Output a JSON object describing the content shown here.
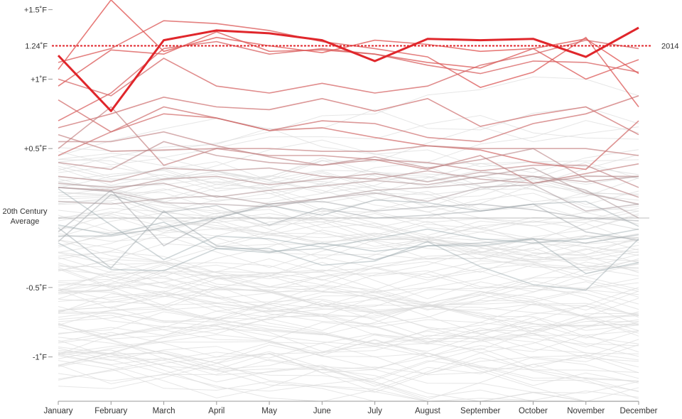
{
  "chart_data": {
    "type": "line",
    "categories": [
      "January",
      "February",
      "March",
      "April",
      "May",
      "June",
      "July",
      "August",
      "September",
      "October",
      "November",
      "December"
    ],
    "y_ticks": [
      {
        "label": "+1.5˚F",
        "value": 1.5
      },
      {
        "label": "+1˚F",
        "value": 1.0
      },
      {
        "label": "+0.5˚F",
        "value": 0.5
      },
      {
        "label": "-0.5˚F",
        "value": -0.5
      },
      {
        "label": "-1˚F",
        "value": -1.0
      }
    ],
    "baseline_label_line1": "20th Century",
    "baseline_label_line2": "Average",
    "ylim": [
      -1.3,
      1.55
    ],
    "reference": {
      "value": 1.24,
      "label": "1.24˚F",
      "color": "#e0262b"
    },
    "highlight": {
      "name": "2014",
      "color": "#e0262b",
      "values": [
        1.17,
        0.77,
        1.28,
        1.35,
        1.33,
        1.28,
        1.13,
        1.29,
        1.28,
        1.29,
        1.16,
        1.37
      ]
    },
    "series": [
      {
        "values": [
          1.07,
          1.57,
          1.2,
          1.3,
          1.24,
          1.19,
          1.28,
          1.25,
          1.2,
          1.22,
          1.29,
          1.04
        ],
        "warmth": 0.95
      },
      {
        "values": [
          1.12,
          1.22,
          1.42,
          1.4,
          1.35,
          1.27,
          1.22,
          1.16,
          0.94,
          1.05,
          1.3,
          0.8
        ],
        "warmth": 0.9
      },
      {
        "values": [
          0.95,
          1.21,
          1.18,
          1.34,
          1.2,
          1.21,
          1.18,
          1.12,
          1.08,
          1.22,
          1.0,
          1.14
        ],
        "warmth": 0.9
      },
      {
        "values": [
          0.7,
          0.9,
          1.22,
          1.27,
          1.18,
          1.22,
          1.18,
          1.1,
          1.04,
          1.13,
          1.12,
          1.05
        ],
        "warmth": 0.85
      },
      {
        "values": [
          1.0,
          0.88,
          1.15,
          0.95,
          0.9,
          0.97,
          0.9,
          0.95,
          1.1,
          1.18,
          1.28,
          1.22
        ],
        "warmth": 0.8
      },
      {
        "values": [
          0.85,
          0.62,
          0.75,
          0.72,
          0.63,
          0.65,
          0.58,
          0.52,
          0.49,
          0.4,
          0.35,
          0.7
        ],
        "warmth": 0.75
      },
      {
        "values": [
          0.65,
          0.75,
          0.87,
          0.8,
          0.78,
          0.86,
          0.77,
          0.86,
          0.66,
          0.74,
          0.8,
          0.6
        ],
        "warmth": 0.7
      },
      {
        "values": [
          0.45,
          0.62,
          0.8,
          0.72,
          0.63,
          0.7,
          0.68,
          0.58,
          0.55,
          0.68,
          0.75,
          0.88
        ],
        "warmth": 0.7
      },
      {
        "values": [
          0.5,
          0.8,
          0.38,
          0.5,
          0.5,
          0.48,
          0.48,
          0.52,
          0.5,
          0.5,
          0.5,
          0.45
        ],
        "warmth": 0.55
      },
      {
        "values": [
          0.6,
          0.48,
          0.49,
          0.5,
          0.45,
          0.45,
          0.42,
          0.35,
          0.45,
          0.25,
          0.32,
          0.39
        ],
        "warmth": 0.55
      },
      {
        "values": [
          0.55,
          0.55,
          0.62,
          0.52,
          0.44,
          0.38,
          0.42,
          0.4,
          0.34,
          0.38,
          0.38,
          0.22
        ],
        "warmth": 0.5
      },
      {
        "values": [
          0.4,
          0.35,
          0.55,
          0.45,
          0.4,
          0.38,
          0.44,
          0.36,
          0.42,
          0.5,
          0.28,
          0.15
        ],
        "warmth": 0.45
      },
      {
        "values": [
          0.3,
          0.26,
          0.36,
          0.34,
          0.36,
          0.3,
          0.28,
          0.34,
          0.28,
          0.25,
          0.3,
          0.3
        ],
        "warmth": 0.4
      },
      {
        "values": [
          0.22,
          0.2,
          0.28,
          0.3,
          0.24,
          0.28,
          0.32,
          0.26,
          0.33,
          0.3,
          0.26,
          0.3
        ],
        "warmth": 0.35
      },
      {
        "values": [
          0.25,
          0.22,
          0.25,
          0.15,
          0.2,
          0.23,
          0.27,
          0.24,
          0.3,
          0.36,
          0.18,
          0.1
        ],
        "warmth": 0.3
      },
      {
        "values": [
          0.12,
          0.1,
          0.14,
          0.16,
          0.1,
          0.14,
          0.2,
          0.22,
          0.25,
          0.3,
          0.2,
          0.0
        ],
        "warmth": 0.25
      },
      {
        "values": [
          0.22,
          0.19,
          0.11,
          0.1,
          0.08,
          0.14,
          0.18,
          0.12,
          0.22,
          0.24,
          0.05,
          0.1
        ],
        "warmth": 0.22
      },
      {
        "values": [
          -0.1,
          0.2,
          -0.2,
          0.0,
          0.1,
          0.12,
          0.05,
          0.08,
          0.1,
          0.06,
          0.0,
          -0.02
        ],
        "warmth": 0.1
      },
      {
        "values": [
          -0.17,
          0.17,
          0.04,
          0.09,
          -0.05,
          0.07,
          0.0,
          0.02,
          0.05,
          0.1,
          -0.1,
          -0.16
        ],
        "warmth": 0.08
      },
      {
        "values": [
          -0.13,
          -0.13,
          -0.07,
          0.0,
          0.09,
          0.02,
          0.13,
          0.11,
          0.05,
          0.1,
          0.12,
          -0.06
        ],
        "warmth": 0.05
      },
      {
        "values": [
          -0.07,
          -0.36,
          0.05,
          -0.2,
          -0.24,
          -0.22,
          -0.3,
          -0.2,
          -0.18,
          -0.15,
          -0.18,
          -0.12
        ],
        "warmth": 0.05
      },
      {
        "values": [
          0.21,
          -0.05,
          -0.3,
          -0.13,
          -0.15,
          -0.21,
          -0.15,
          -0.08,
          -0.15,
          -0.18,
          -0.15,
          -0.08
        ],
        "warmth": 0.03
      },
      {
        "values": [
          -0.18,
          -0.37,
          -0.38,
          -0.22,
          -0.22,
          -0.34,
          -0.31,
          -0.17,
          -0.35,
          -0.48,
          -0.52,
          -0.15
        ],
        "warmth": 0.02
      },
      {
        "values": [
          -0.05,
          -0.12,
          -0.03,
          -0.22,
          -0.25,
          -0.18,
          -0.24,
          -0.2,
          -0.2,
          -0.15,
          -0.4,
          -0.32
        ],
        "warmth": 0.02
      }
    ]
  }
}
